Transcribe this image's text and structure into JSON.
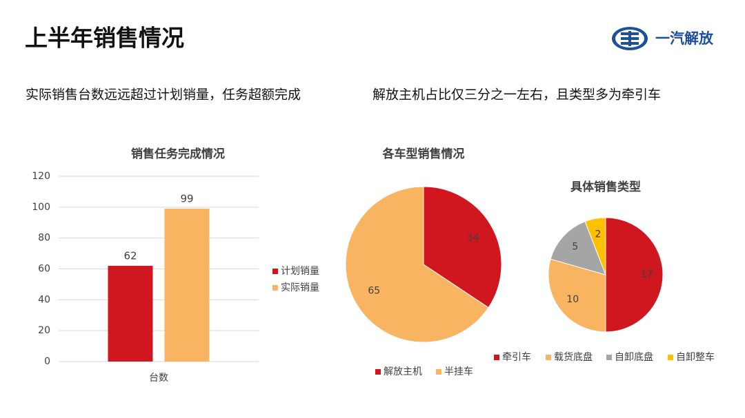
{
  "header": {
    "title": "上半年销售情况",
    "logo": "一汽解放"
  },
  "subtitles": [
    "实际销售台数远远超过计划销量，任务超额完成",
    "解放主机占比仅三分之一左右，且类型多为牵引车"
  ],
  "chart_data": [
    {
      "type": "bar",
      "title": "销售任务完成情况",
      "categories": [
        "台数"
      ],
      "series": [
        {
          "name": "计划销量",
          "color": "#d0161f",
          "values": [
            62
          ]
        },
        {
          "name": "实际销量",
          "color": "#f9b462",
          "values": [
            99
          ]
        }
      ],
      "ylim": [
        0,
        120
      ],
      "yticks": [
        0,
        20,
        40,
        60,
        80,
        100,
        120
      ],
      "grid": true,
      "legend": "right"
    },
    {
      "type": "pie",
      "title": "各车型销售情况",
      "categories": [
        "解放主机",
        "半挂车"
      ],
      "values": [
        34,
        65
      ],
      "colors": [
        "#d0161f",
        "#f9b462"
      ],
      "legend": "bottom"
    },
    {
      "type": "pie",
      "title": "具体销售类型",
      "categories": [
        "牵引车",
        "载货底盘",
        "自卸底盘",
        "自卸整车"
      ],
      "values": [
        17,
        10,
        5,
        2
      ],
      "colors": [
        "#d0161f",
        "#f9b462",
        "#a5a5a5",
        "#ffc000"
      ],
      "legend": "bottom"
    }
  ]
}
